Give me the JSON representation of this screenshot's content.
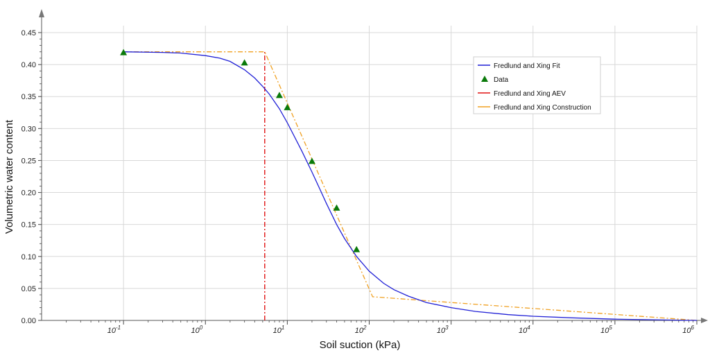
{
  "chart_data": {
    "type": "line",
    "xlabel": "Soil suction  (kPa)",
    "ylabel": "Volumetric water content",
    "xscale": "log",
    "xlim": [
      0.01,
      1000000
    ],
    "ylim": [
      0,
      0.45
    ],
    "grid": true,
    "legend_position": "top-right",
    "x_ticks": [
      {
        "value": 0.1,
        "base": "10",
        "exp": "-1"
      },
      {
        "value": 1,
        "base": "10",
        "exp": "0"
      },
      {
        "value": 10,
        "base": "10",
        "exp": "1"
      },
      {
        "value": 100,
        "base": "10",
        "exp": "2"
      },
      {
        "value": 1000,
        "base": "10",
        "exp": "3"
      },
      {
        "value": 10000,
        "base": "10",
        "exp": "4"
      },
      {
        "value": 100000,
        "base": "10",
        "exp": "5"
      },
      {
        "value": 1000000,
        "base": "10",
        "exp": "6"
      }
    ],
    "y_ticks": [
      "0.00",
      "0.05",
      "0.10",
      "0.15",
      "0.20",
      "0.25",
      "0.30",
      "0.35",
      "0.40",
      "0.45"
    ],
    "series": [
      {
        "name": "Fredlund and Xing Fit",
        "kind": "line",
        "color": "#1f1fd6",
        "x": [
          0.1,
          0.3,
          0.5,
          1,
          1.5,
          2,
          3,
          4,
          5,
          6,
          8,
          10,
          15,
          20,
          25,
          30,
          40,
          50,
          70,
          100,
          150,
          200,
          300,
          500,
          1000,
          2000,
          5000,
          10000,
          30000,
          100000,
          300000,
          1000000
        ],
        "y": [
          0.42,
          0.419,
          0.418,
          0.414,
          0.41,
          0.405,
          0.392,
          0.379,
          0.366,
          0.354,
          0.331,
          0.309,
          0.265,
          0.232,
          0.205,
          0.183,
          0.15,
          0.128,
          0.1,
          0.077,
          0.058,
          0.048,
          0.038,
          0.028,
          0.02,
          0.014,
          0.009,
          0.0065,
          0.004,
          0.002,
          0.001,
          0.0
        ]
      },
      {
        "name": "Data",
        "kind": "scatter",
        "color": "#0a7a0a",
        "x": [
          0.1,
          3,
          8,
          10,
          20,
          40,
          70
        ],
        "y": [
          0.419,
          0.403,
          0.352,
          0.333,
          0.249,
          0.176,
          0.111
        ]
      },
      {
        "name": "Fredlund and Xing AEV",
        "kind": "vline",
        "color": "#e01010",
        "x": [
          5.3,
          5.3
        ],
        "y": [
          0,
          0.42
        ]
      },
      {
        "name": "Fredlund and Xing Construction",
        "kind": "line",
        "color": "#f0a020",
        "x": [
          0.1,
          5.3,
          110,
          1000000
        ],
        "y": [
          0.42,
          0.42,
          0.037,
          0.0
        ]
      }
    ]
  }
}
